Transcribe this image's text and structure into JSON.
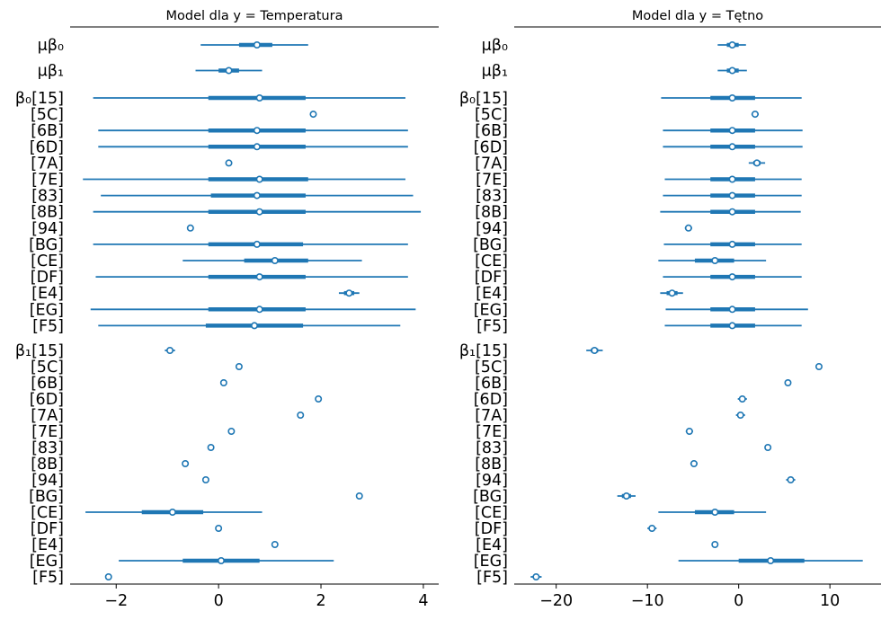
{
  "chart_data": [
    {
      "type": "forest",
      "title": "Model dla y = Temperatura",
      "xlabel": "",
      "ylabel": "",
      "xlim": [
        -2.9,
        4.3
      ],
      "xticks": [
        -2,
        0,
        2,
        4
      ],
      "xtick_labels": [
        "−2",
        "0",
        "2",
        "4"
      ],
      "rows": [
        {
          "label": "μβ₀",
          "mean": 0.75,
          "hdi": [
            -0.35,
            1.75
          ],
          "iqr": [
            0.4,
            1.05
          ]
        },
        {
          "label": "μβ₁",
          "mean": 0.2,
          "hdi": [
            -0.45,
            0.85
          ],
          "iqr": [
            0.0,
            0.4
          ]
        },
        {
          "label": "β₀[15]",
          "mean": 0.8,
          "hdi": [
            -2.45,
            3.65
          ],
          "iqr": [
            -0.2,
            1.7
          ]
        },
        {
          "label": "[5C]",
          "mean": 1.85,
          "hdi": null,
          "iqr": null
        },
        {
          "label": "[6B]",
          "mean": 0.75,
          "hdi": [
            -2.35,
            3.7
          ],
          "iqr": [
            -0.2,
            1.7
          ]
        },
        {
          "label": "[6D]",
          "mean": 0.75,
          "hdi": [
            -2.35,
            3.7
          ],
          "iqr": [
            -0.2,
            1.7
          ]
        },
        {
          "label": "[7A]",
          "mean": 0.2,
          "hdi": null,
          "iqr": null
        },
        {
          "label": "[7E]",
          "mean": 0.8,
          "hdi": [
            -2.65,
            3.65
          ],
          "iqr": [
            -0.2,
            1.75
          ]
        },
        {
          "label": "[83]",
          "mean": 0.75,
          "hdi": [
            -2.3,
            3.8
          ],
          "iqr": [
            -0.15,
            1.7
          ]
        },
        {
          "label": "[8B]",
          "mean": 0.8,
          "hdi": [
            -2.45,
            3.95
          ],
          "iqr": [
            -0.2,
            1.7
          ]
        },
        {
          "label": "[94]",
          "mean": -0.55,
          "hdi": null,
          "iqr": null
        },
        {
          "label": "[BG]",
          "mean": 0.75,
          "hdi": [
            -2.45,
            3.7
          ],
          "iqr": [
            -0.2,
            1.65
          ]
        },
        {
          "label": "[CE]",
          "mean": 1.1,
          "hdi": [
            -0.7,
            2.8
          ],
          "iqr": [
            0.5,
            1.75
          ]
        },
        {
          "label": "[DF]",
          "mean": 0.8,
          "hdi": [
            -2.4,
            3.7
          ],
          "iqr": [
            -0.2,
            1.7
          ]
        },
        {
          "label": "[E4]",
          "mean": 2.55,
          "hdi": [
            2.35,
            2.75
          ],
          "iqr": [
            2.45,
            2.65
          ]
        },
        {
          "label": "[EG]",
          "mean": 0.8,
          "hdi": [
            -2.5,
            3.85
          ],
          "iqr": [
            -0.2,
            1.7
          ]
        },
        {
          "label": "[F5]",
          "mean": 0.7,
          "hdi": [
            -2.35,
            3.55
          ],
          "iqr": [
            -0.25,
            1.65
          ]
        },
        {
          "label": "β₁[15]",
          "mean": -0.95,
          "hdi": [
            -1.05,
            -0.85
          ],
          "iqr": null
        },
        {
          "label": "[5C]",
          "mean": 0.4,
          "hdi": null,
          "iqr": null
        },
        {
          "label": "[6B]",
          "mean": 0.1,
          "hdi": null,
          "iqr": null
        },
        {
          "label": "[6D]",
          "mean": 1.95,
          "hdi": null,
          "iqr": null
        },
        {
          "label": "[7A]",
          "mean": 1.6,
          "hdi": null,
          "iqr": null
        },
        {
          "label": "[7E]",
          "mean": 0.25,
          "hdi": null,
          "iqr": null
        },
        {
          "label": "[83]",
          "mean": -0.15,
          "hdi": null,
          "iqr": null
        },
        {
          "label": "[8B]",
          "mean": -0.65,
          "hdi": null,
          "iqr": null
        },
        {
          "label": "[94]",
          "mean": -0.25,
          "hdi": null,
          "iqr": null
        },
        {
          "label": "[BG]",
          "mean": 2.75,
          "hdi": null,
          "iqr": null
        },
        {
          "label": "[CE]",
          "mean": -0.9,
          "hdi": [
            -2.6,
            0.85
          ],
          "iqr": [
            -1.5,
            -0.3
          ]
        },
        {
          "label": "[DF]",
          "mean": 0.0,
          "hdi": null,
          "iqr": null
        },
        {
          "label": "[E4]",
          "mean": 1.1,
          "hdi": null,
          "iqr": null
        },
        {
          "label": "[EG]",
          "mean": 0.05,
          "hdi": [
            -1.95,
            2.25
          ],
          "iqr": [
            -0.7,
            0.8
          ]
        },
        {
          "label": "[F5]",
          "mean": -2.15,
          "hdi": null,
          "iqr": null
        }
      ]
    },
    {
      "type": "forest",
      "title": "Model dla y = Tętno",
      "xlabel": "",
      "ylabel": "",
      "xlim": [
        -24.6,
        15.6
      ],
      "xticks": [
        -20,
        -10,
        0,
        10
      ],
      "xtick_labels": [
        "−20",
        "−10",
        "0",
        "10"
      ],
      "rows": [
        {
          "label": "μβ₀",
          "mean": -0.7,
          "hdi": [
            -2.3,
            0.8
          ],
          "iqr": [
            -1.3,
            0.0
          ]
        },
        {
          "label": "μβ₁",
          "mean": -0.7,
          "hdi": [
            -2.3,
            0.9
          ],
          "iqr": [
            -1.3,
            0.0
          ]
        },
        {
          "label": "β₀[15]",
          "mean": -0.7,
          "hdi": [
            -8.5,
            6.9
          ],
          "iqr": [
            -3.1,
            1.8
          ]
        },
        {
          "label": "[5C]",
          "mean": 1.8,
          "hdi": [
            1.4,
            2.2
          ],
          "iqr": null
        },
        {
          "label": "[6B]",
          "mean": -0.7,
          "hdi": [
            -8.3,
            7.0
          ],
          "iqr": [
            -3.1,
            1.8
          ]
        },
        {
          "label": "[6D]",
          "mean": -0.7,
          "hdi": [
            -8.3,
            7.0
          ],
          "iqr": [
            -3.1,
            1.8
          ]
        },
        {
          "label": "[7A]",
          "mean": 2.0,
          "hdi": [
            1.1,
            2.9
          ],
          "iqr": [
            1.6,
            2.4
          ]
        },
        {
          "label": "[7E]",
          "mean": -0.7,
          "hdi": [
            -8.1,
            6.9
          ],
          "iqr": [
            -3.1,
            1.8
          ]
        },
        {
          "label": "[83]",
          "mean": -0.7,
          "hdi": [
            -8.3,
            6.9
          ],
          "iqr": [
            -3.1,
            1.8
          ]
        },
        {
          "label": "[8B]",
          "mean": -0.7,
          "hdi": [
            -8.6,
            6.8
          ],
          "iqr": [
            -3.1,
            1.8
          ]
        },
        {
          "label": "[94]",
          "mean": -5.5,
          "hdi": [
            -5.9,
            -5.1
          ],
          "iqr": null
        },
        {
          "label": "[BG]",
          "mean": -0.7,
          "hdi": [
            -8.2,
            6.9
          ],
          "iqr": [
            -3.1,
            1.8
          ]
        },
        {
          "label": "[CE]",
          "mean": -2.6,
          "hdi": [
            -8.8,
            3.0
          ],
          "iqr": [
            -4.8,
            -0.5
          ]
        },
        {
          "label": "[DF]",
          "mean": -0.7,
          "hdi": [
            -8.3,
            6.9
          ],
          "iqr": [
            -3.1,
            1.8
          ]
        },
        {
          "label": "[E4]",
          "mean": -7.3,
          "hdi": [
            -8.6,
            -6.1
          ],
          "iqr": [
            -7.9,
            -6.7
          ]
        },
        {
          "label": "[EG]",
          "mean": -0.7,
          "hdi": [
            -8.0,
            7.6
          ],
          "iqr": [
            -3.1,
            1.8
          ]
        },
        {
          "label": "[F5]",
          "mean": -0.7,
          "hdi": [
            -8.1,
            6.9
          ],
          "iqr": [
            -3.1,
            1.8
          ]
        },
        {
          "label": "β₁[15]",
          "mean": -15.8,
          "hdi": [
            -16.7,
            -14.9
          ],
          "iqr": [
            -16.2,
            -15.4
          ]
        },
        {
          "label": "[5C]",
          "mean": 8.8,
          "hdi": null,
          "iqr": null
        },
        {
          "label": "[6B]",
          "mean": 5.4,
          "hdi": null,
          "iqr": null
        },
        {
          "label": "[6D]",
          "mean": 0.4,
          "hdi": [
            -0.1,
            0.9
          ],
          "iqr": null
        },
        {
          "label": "[7A]",
          "mean": 0.2,
          "hdi": [
            -0.3,
            0.7
          ],
          "iqr": null
        },
        {
          "label": "[7E]",
          "mean": -5.4,
          "hdi": [
            -5.8,
            -5.0
          ],
          "iqr": null
        },
        {
          "label": "[83]",
          "mean": 3.2,
          "hdi": null,
          "iqr": null
        },
        {
          "label": "[8B]",
          "mean": -4.9,
          "hdi": [
            -5.3,
            -4.5
          ],
          "iqr": null
        },
        {
          "label": "[94]",
          "mean": 5.7,
          "hdi": [
            5.2,
            6.2
          ],
          "iqr": null
        },
        {
          "label": "[BG]",
          "mean": -12.3,
          "hdi": [
            -13.3,
            -11.3
          ],
          "iqr": [
            -12.8,
            -11.8
          ]
        },
        {
          "label": "[CE]",
          "mean": -2.6,
          "hdi": [
            -8.8,
            3.0
          ],
          "iqr": [
            -4.8,
            -0.5
          ]
        },
        {
          "label": "[DF]",
          "mean": -9.5,
          "hdi": [
            -10.0,
            -9.0
          ],
          "iqr": null
        },
        {
          "label": "[E4]",
          "mean": -2.6,
          "hdi": null,
          "iqr": null
        },
        {
          "label": "[EG]",
          "mean": 3.5,
          "hdi": [
            -6.6,
            13.6
          ],
          "iqr": [
            0.0,
            7.2
          ]
        },
        {
          "label": "[F5]",
          "mean": -22.2,
          "hdi": [
            -22.8,
            -21.6
          ],
          "iqr": null
        }
      ]
    }
  ]
}
